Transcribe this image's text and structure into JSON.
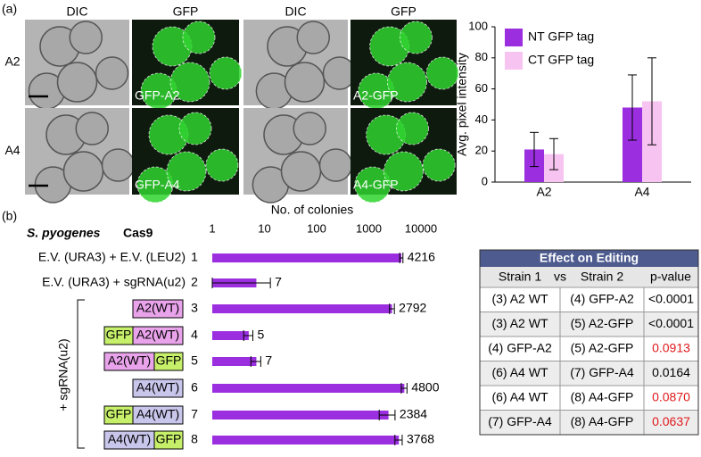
{
  "panel_labels": [
    "(a)",
    "(b)"
  ],
  "microscopy": {
    "column_headers": [
      "DIC",
      "GFP",
      "DIC",
      "GFP"
    ],
    "row_labels": [
      "A2",
      "A4"
    ],
    "image_labels": [
      [
        "GFP-A2",
        "A2-GFP"
      ],
      [
        "GFP-A4",
        "A4-GFP"
      ]
    ]
  },
  "chart_data": [
    {
      "type": "bar",
      "ylabel": "Avg. pixel intensity",
      "categories": [
        "A2",
        "A4"
      ],
      "series": [
        {
          "name": "NT GFP tag",
          "color": "#9b2fe0",
          "values": [
            21,
            48
          ],
          "errors": [
            11,
            21
          ]
        },
        {
          "name": "CT GFP tag",
          "color": "#f7c4f2",
          "values": [
            18,
            52
          ],
          "errors": [
            10,
            28
          ]
        }
      ],
      "ylim": [
        0,
        100
      ],
      "yticks": [
        0,
        20,
        40,
        60,
        80,
        100
      ],
      "legend": "upper left"
    },
    {
      "type": "hbar",
      "title": "S. pyogenes",
      "title_suffix": "Cas9",
      "xlabel": "No. of colonies",
      "categories": [
        "1",
        "2",
        "3",
        "4",
        "5",
        "6",
        "7",
        "8"
      ],
      "values": [
        4216,
        7,
        2792,
        5,
        7,
        4800,
        2384,
        3768
      ],
      "errors": [
        300,
        6,
        300,
        1,
        1.5,
        600,
        800,
        600
      ],
      "color": "#9b2fe0",
      "log": true,
      "xlim": [
        1,
        10000
      ],
      "xticks": [
        1,
        10,
        100,
        1000,
        10000
      ],
      "row_texts": [
        "E.V. (URA3) + E.V. (LEU2)",
        "E.V. (URA3) + sgRNA(u2)"
      ],
      "row_boxes": [
        [
          {
            "label": "A2(WT)",
            "color": "#e9a3ea"
          }
        ],
        [
          {
            "label": "GFP",
            "color": "#c6ef6a"
          },
          {
            "label": "A2(WT)",
            "color": "#e9a3ea"
          }
        ],
        [
          {
            "label": "A2(WT)",
            "color": "#e9a3ea"
          },
          {
            "label": "GFP",
            "color": "#c6ef6a"
          }
        ],
        [
          {
            "label": "A4(WT)",
            "color": "#c9c6ec"
          }
        ],
        [
          {
            "label": "GFP",
            "color": "#c6ef6a"
          },
          {
            "label": "A4(WT)",
            "color": "#c9c6ec"
          }
        ],
        [
          {
            "label": "A4(WT)",
            "color": "#c9c6ec"
          },
          {
            "label": "GFP",
            "color": "#c6ef6a"
          }
        ]
      ],
      "bracket_label": "+ sgRNA(u2)"
    }
  ],
  "table": {
    "title": "Effect on Editing",
    "header": [
      "Strain 1",
      "vs",
      "Strain 2",
      "p-value"
    ],
    "rows": [
      {
        "strain1": "(3) A2 WT",
        "strain2": "(4) GFP-A2",
        "p": "<0.0001",
        "highlight": false
      },
      {
        "strain1": "(3) A2 WT",
        "strain2": "(5) A2-GFP",
        "p": "<0.0001",
        "highlight": false
      },
      {
        "strain1": "(4) GFP-A2",
        "strain2": "(5) A2-GFP",
        "p": "0.0913",
        "highlight": true
      },
      {
        "strain1": "(6) A4 WT",
        "strain2": "(7) GFP-A4",
        "p": "0.0164",
        "highlight": false
      },
      {
        "strain1": "(6) A4 WT",
        "strain2": "(8) A4-GFP",
        "p": "0.0870",
        "highlight": true
      },
      {
        "strain1": "(7) GFP-A4",
        "strain2": "(8) A4-GFP",
        "p": "0.0637",
        "highlight": true
      }
    ]
  }
}
